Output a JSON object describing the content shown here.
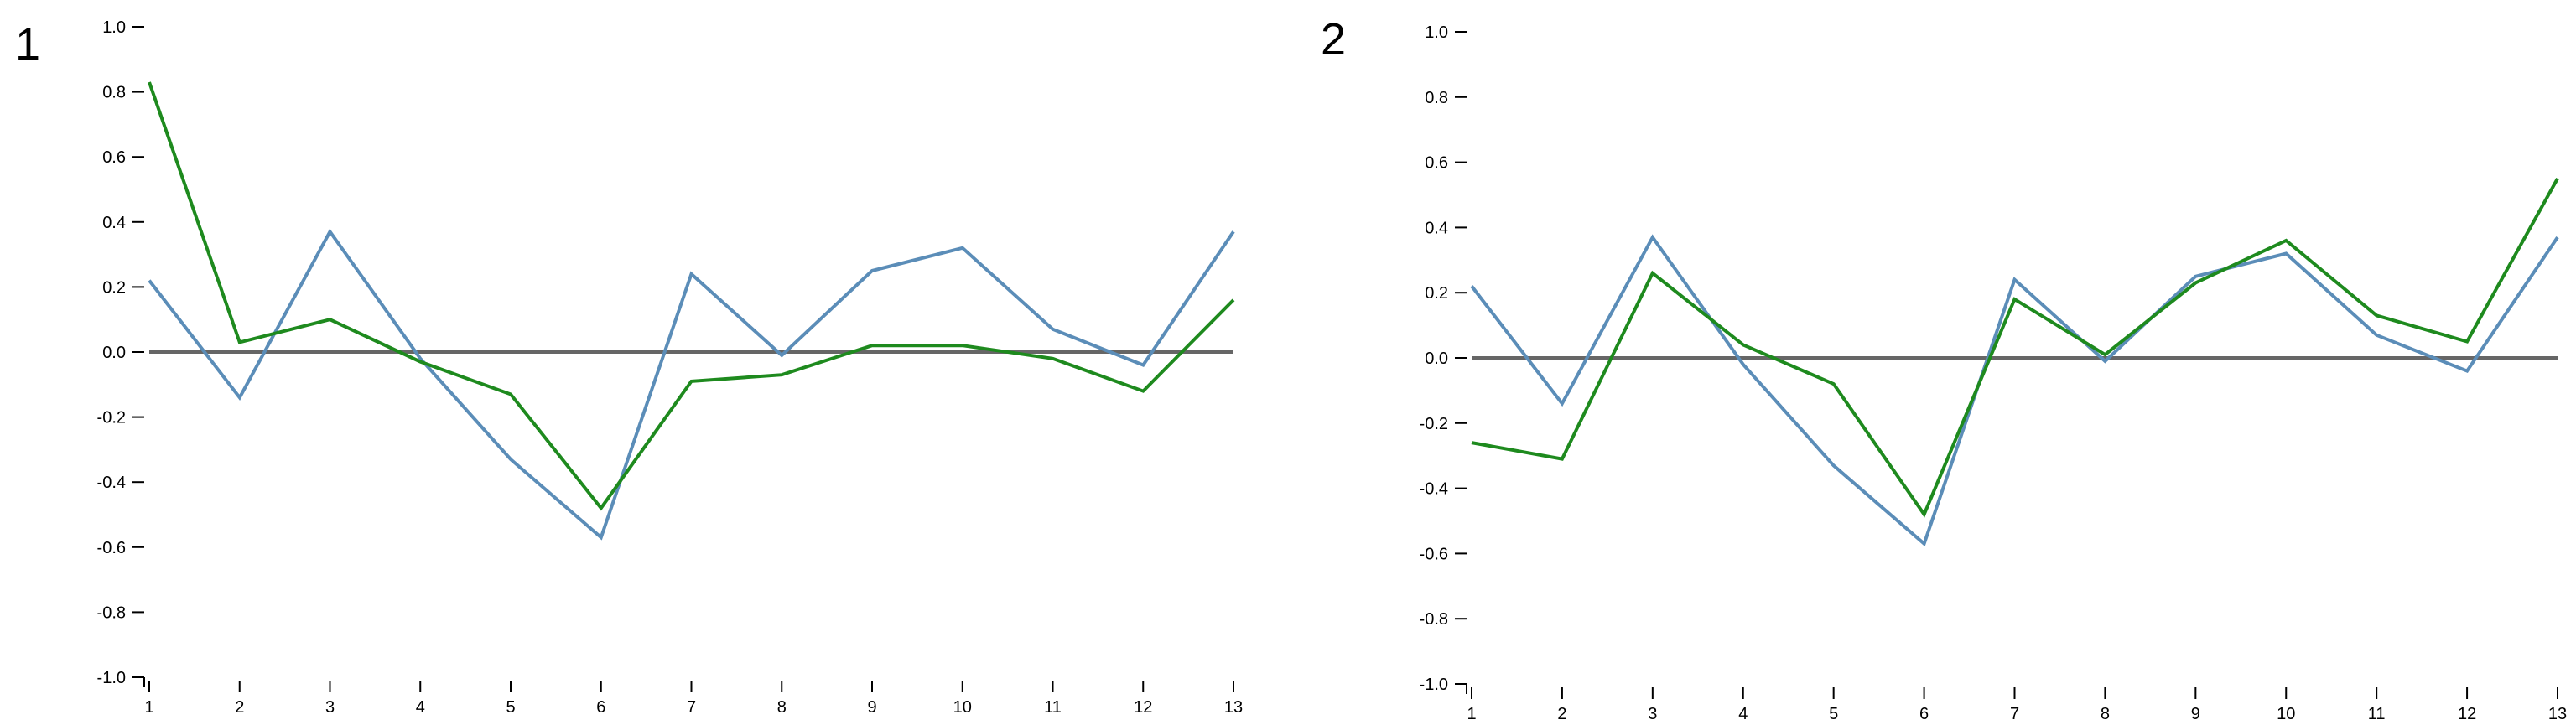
{
  "chart_data": [
    {
      "type": "line",
      "panel_label": "1",
      "x": [
        1,
        2,
        3,
        4,
        5,
        6,
        7,
        8,
        9,
        10,
        11,
        12,
        13
      ],
      "ylim": [
        -1.0,
        1.0
      ],
      "yticks": [
        "1.0",
        "0.8",
        "0.6",
        "0.4",
        "0.2",
        "0.0",
        "-0.2",
        "-0.4",
        "-0.6",
        "-0.8",
        "-1.0"
      ],
      "xticks": [
        "1",
        "2",
        "3",
        "4",
        "5",
        "6",
        "7",
        "8",
        "9",
        "10",
        "11",
        "12",
        "13"
      ],
      "baseline": 0.0,
      "series": [
        {
          "color": "#5b8db8",
          "values": [
            0.22,
            -0.14,
            0.37,
            -0.02,
            -0.33,
            -0.57,
            0.24,
            -0.01,
            0.25,
            0.32,
            0.07,
            -0.04,
            0.37
          ]
        },
        {
          "color": "#1e8a1e",
          "values": [
            0.83,
            0.03,
            0.1,
            -0.03,
            -0.13,
            -0.48,
            -0.09,
            -0.07,
            0.02,
            0.02,
            -0.02,
            -0.12,
            0.16
          ]
        }
      ]
    },
    {
      "type": "line",
      "panel_label": "2",
      "x": [
        1,
        2,
        3,
        4,
        5,
        6,
        7,
        8,
        9,
        10,
        11,
        12,
        13
      ],
      "ylim": [
        -1.0,
        1.0
      ],
      "yticks": [
        "1.0",
        "0.8",
        "0.6",
        "0.4",
        "0.2",
        "0.0",
        "-0.2",
        "-0.4",
        "-0.6",
        "-0.8",
        "-1.0"
      ],
      "xticks": [
        "1",
        "2",
        "3",
        "4",
        "5",
        "6",
        "7",
        "8",
        "9",
        "10",
        "11",
        "12",
        "13"
      ],
      "baseline": 0.0,
      "series": [
        {
          "color": "#5b8db8",
          "values": [
            0.22,
            -0.14,
            0.37,
            -0.02,
            -0.33,
            -0.57,
            0.24,
            -0.01,
            0.25,
            0.32,
            0.07,
            -0.04,
            0.37
          ]
        },
        {
          "color": "#1e8a1e",
          "values": [
            -0.26,
            -0.31,
            0.26,
            0.04,
            -0.08,
            -0.48,
            0.18,
            0.01,
            0.23,
            0.36,
            0.13,
            0.05,
            0.55
          ]
        }
      ]
    }
  ]
}
